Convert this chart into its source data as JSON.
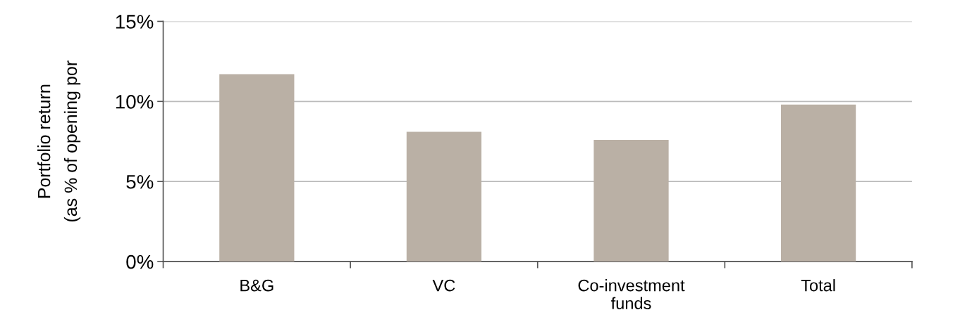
{
  "chart_data": {
    "type": "bar",
    "ylabel": "Portfolio return\n(as % of opening por",
    "categories": [
      "B&G",
      "VC",
      "Co-investment\nfunds",
      "Total"
    ],
    "values": [
      11.7,
      8.1,
      7.6,
      9.8
    ],
    "color": "#bab0a5",
    "ylim": [
      0,
      15
    ],
    "yticks": [
      {
        "value": 0,
        "label": "0%"
      },
      {
        "value": 5,
        "label": "5%"
      },
      {
        "value": 10,
        "label": "10%"
      },
      {
        "value": 15,
        "label": "15%"
      }
    ],
    "grid": "y"
  }
}
